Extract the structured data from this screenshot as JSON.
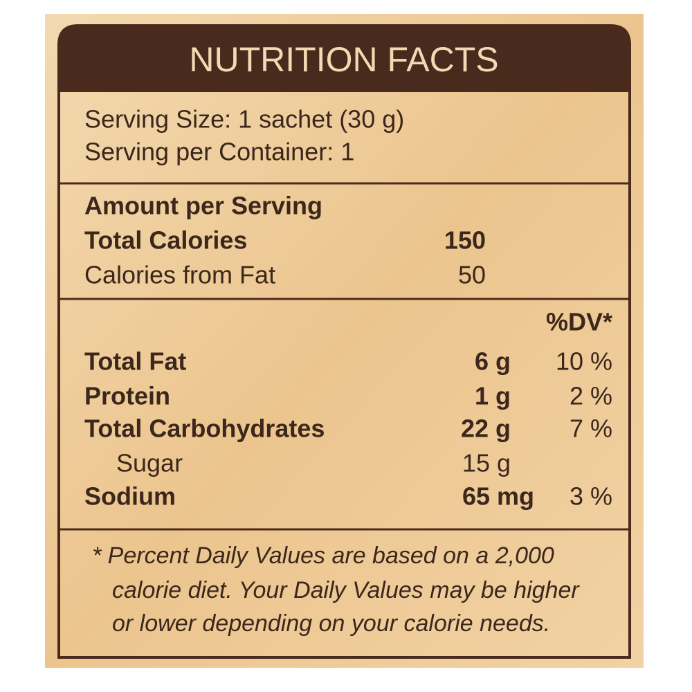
{
  "header": {
    "title": "NUTRITION FACTS"
  },
  "serving": {
    "size": "Serving Size: 1 sachet (30 g)",
    "per_container": "Serving per Container: 1"
  },
  "calories": {
    "heading": "Amount per Serving",
    "rows": [
      {
        "label": "Total Calories",
        "value": "150"
      },
      {
        "label": "Calories from Fat",
        "value": "50"
      }
    ]
  },
  "nutrients": {
    "dv_header": "%DV*",
    "rows": [
      {
        "label": "Total Fat",
        "amount": "6 g",
        "dv": "10 %"
      },
      {
        "label": "Protein",
        "amount": "1 g",
        "dv": "2 %"
      },
      {
        "label": "Total Carbohydrates",
        "amount": "22 g",
        "dv": "7 %"
      },
      {
        "label": "Sugar",
        "amount": "15 g"
      },
      {
        "label": "Sodium",
        "amount": "65 mg",
        "dv": "3 %"
      }
    ]
  },
  "footnote": {
    "lines": [
      "* Percent Daily Values are based on a 2,000",
      "calorie diet. Your Daily Values may be higher",
      "or lower depending on your calorie needs."
    ]
  }
}
